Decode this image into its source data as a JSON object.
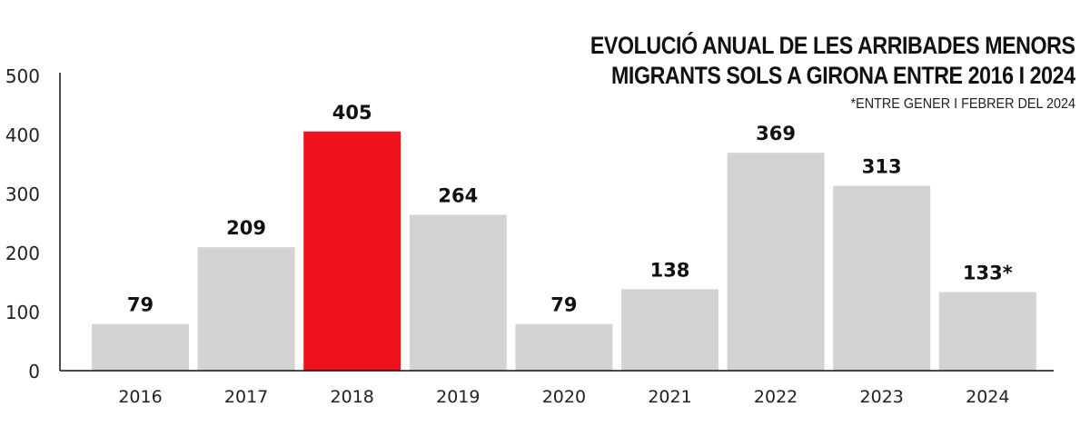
{
  "chart_data": {
    "type": "bar",
    "title": "EVOLUCIÓ ANUAL DE LES ARRIBADES MENORS MIGRANTS SOLS A GIRONA ENTRE 2016 I 2024",
    "title_lines": [
      "EVOLUCIÓ ANUAL DE LES ARRIBADES MENORS",
      "MIGRANTS SOLS A GIRONA ENTRE 2016 I 2024"
    ],
    "subtitle": "*ENTRE GENER I FEBRER DEL 2024",
    "categories": [
      "2016",
      "2017",
      "2018",
      "2019",
      "2020",
      "2021",
      "2022",
      "2023",
      "2024"
    ],
    "values": [
      79,
      209,
      405,
      264,
      79,
      138,
      369,
      313,
      133
    ],
    "data_labels": [
      "79",
      "209",
      "405",
      "264",
      "79",
      "138",
      "369",
      "313",
      "133*"
    ],
    "highlight_index": 2,
    "colors": {
      "bar": "#d3d3d3",
      "highlight": "#f0131e",
      "axis": "#111111"
    },
    "ylim": [
      0,
      500
    ],
    "yticks": [
      0,
      100,
      200,
      300,
      400,
      500
    ],
    "xlabel": "",
    "ylabel": "",
    "grid": false
  }
}
